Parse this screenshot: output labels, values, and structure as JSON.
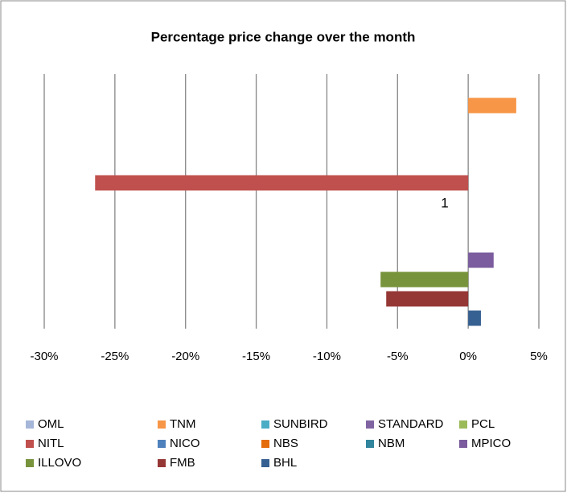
{
  "chart_data": {
    "type": "bar",
    "orientation": "horizontal",
    "title": "Percentage price change over the month",
    "categories": [
      "1"
    ],
    "series": [
      {
        "name": "OML",
        "color": "#a5b6d9",
        "values": [
          0
        ]
      },
      {
        "name": "TNM",
        "color": "#f79646",
        "values": [
          3.4
        ]
      },
      {
        "name": "SUNBIRD",
        "color": "#4bacc6",
        "values": [
          0
        ]
      },
      {
        "name": "STANDARD",
        "color": "#8064a2",
        "values": [
          0
        ]
      },
      {
        "name": "PCL",
        "color": "#9bbb59",
        "values": [
          0
        ]
      },
      {
        "name": "NITL",
        "color": "#c0504d",
        "values": [
          -26.4
        ]
      },
      {
        "name": "NICO",
        "color": "#4f81bd",
        "values": [
          0
        ]
      },
      {
        "name": "NBS",
        "color": "#e46c0a",
        "values": [
          0
        ]
      },
      {
        "name": "NBM",
        "color": "#31859c",
        "values": [
          0
        ]
      },
      {
        "name": "MPICO",
        "color": "#7b5c9e",
        "values": [
          1.8
        ]
      },
      {
        "name": "ILLOVO",
        "color": "#77933c",
        "values": [
          -6.2
        ]
      },
      {
        "name": "FMB",
        "color": "#953735",
        "values": [
          -5.8
        ]
      },
      {
        "name": "BHL",
        "color": "#366092",
        "values": [
          0.9
        ]
      }
    ],
    "xlim": [
      -30,
      5
    ],
    "xticks": [
      {
        "value": -30,
        "label": "-30%"
      },
      {
        "value": -25,
        "label": "-25%"
      },
      {
        "value": -20,
        "label": "-20%"
      },
      {
        "value": -15,
        "label": "-15%"
      },
      {
        "value": -10,
        "label": "-10%"
      },
      {
        "value": -5,
        "label": "-5%"
      },
      {
        "value": 0,
        "label": "0%"
      },
      {
        "value": 5,
        "label": "5%"
      }
    ],
    "grid": true,
    "legend": "bottom"
  }
}
